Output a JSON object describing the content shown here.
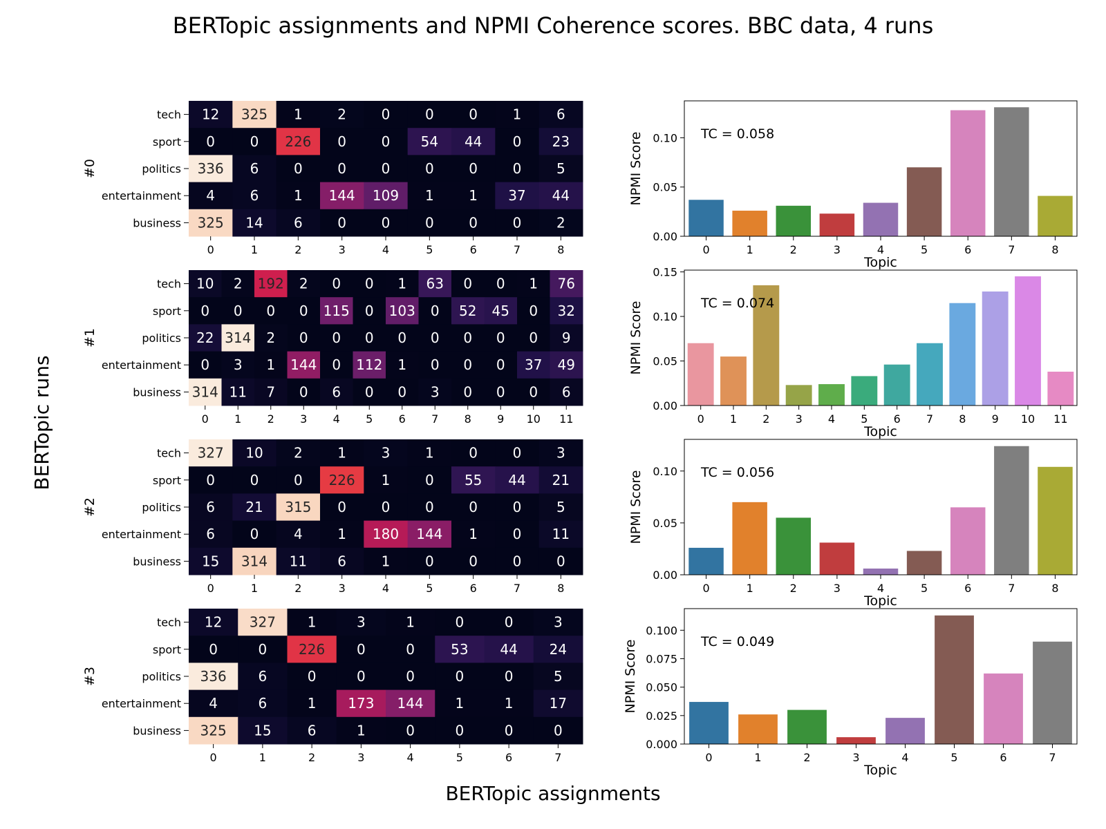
{
  "figure": {
    "title": "BERTopic assignments and NPMI Coherence scores. BBC data, 4 runs",
    "ylabel": "BERTopic runs",
    "xlabel": "BERTopic assignments"
  },
  "chart_data": [
    {
      "type": "heatmap",
      "run_label": "#0",
      "rows": [
        "tech",
        "sport",
        "politics",
        "entertainment",
        "business"
      ],
      "columns": [
        "0",
        "1",
        "2",
        "3",
        "4",
        "5",
        "6",
        "7",
        "8"
      ],
      "values": [
        [
          12,
          325,
          1,
          2,
          0,
          0,
          0,
          1,
          6
        ],
        [
          0,
          0,
          226,
          0,
          0,
          54,
          44,
          0,
          23
        ],
        [
          336,
          6,
          0,
          0,
          0,
          0,
          0,
          0,
          5
        ],
        [
          4,
          6,
          1,
          144,
          109,
          1,
          1,
          37,
          44
        ],
        [
          325,
          14,
          6,
          0,
          0,
          0,
          0,
          0,
          2
        ]
      ]
    },
    {
      "type": "bar",
      "annotation": "TC = 0.058",
      "xlabel": "Topic",
      "ylabel": "NPMI Score",
      "categories": [
        "0",
        "1",
        "2",
        "3",
        "4",
        "5",
        "6",
        "7",
        "8"
      ],
      "values": [
        0.037,
        0.026,
        0.031,
        0.023,
        0.034,
        0.07,
        0.128,
        0.131,
        0.041
      ],
      "ylim": [
        0,
        0.1375
      ],
      "yticks": [
        "0.00",
        "0.05",
        "0.10"
      ],
      "colors": [
        "#3274a1",
        "#e1812c",
        "#3a923a",
        "#c03d3e",
        "#9372b2",
        "#845b53",
        "#d684bd",
        "#7f7f7f",
        "#a9aa35"
      ]
    },
    {
      "type": "heatmap",
      "run_label": "#1",
      "rows": [
        "tech",
        "sport",
        "politics",
        "entertainment",
        "business"
      ],
      "columns": [
        "0",
        "1",
        "2",
        "3",
        "4",
        "5",
        "6",
        "7",
        "8",
        "9",
        "10",
        "11"
      ],
      "values": [
        [
          10,
          2,
          192,
          2,
          0,
          0,
          1,
          63,
          0,
          0,
          1,
          76
        ],
        [
          0,
          0,
          0,
          0,
          115,
          0,
          103,
          0,
          52,
          45,
          0,
          32
        ],
        [
          22,
          314,
          2,
          0,
          0,
          0,
          0,
          0,
          0,
          0,
          0,
          9
        ],
        [
          0,
          3,
          1,
          144,
          0,
          112,
          1,
          0,
          0,
          0,
          37,
          49
        ],
        [
          314,
          11,
          7,
          0,
          6,
          0,
          0,
          3,
          0,
          0,
          0,
          6
        ]
      ]
    },
    {
      "type": "bar",
      "annotation": "TC = 0.074",
      "xlabel": "Topic",
      "ylabel": "NPMI Score",
      "categories": [
        "0",
        "1",
        "2",
        "3",
        "4",
        "5",
        "6",
        "7",
        "8",
        "9",
        "10",
        "11"
      ],
      "values": [
        0.07,
        0.055,
        0.135,
        0.023,
        0.024,
        0.033,
        0.046,
        0.07,
        0.115,
        0.128,
        0.145,
        0.038
      ],
      "ylim": [
        0,
        0.152
      ],
      "yticks": [
        "0.00",
        "0.05",
        "0.10",
        "0.15"
      ],
      "colors": [
        "#e9969f",
        "#df9258",
        "#b59a4b",
        "#96a448",
        "#5fad4b",
        "#3aab7c",
        "#3fa89f",
        "#45a8bd",
        "#6aa9e0",
        "#aca0e6",
        "#da88e6",
        "#e68ac4"
      ]
    },
    {
      "type": "heatmap",
      "run_label": "#2",
      "rows": [
        "tech",
        "sport",
        "politics",
        "entertainment",
        "business"
      ],
      "columns": [
        "0",
        "1",
        "2",
        "3",
        "4",
        "5",
        "6",
        "7",
        "8"
      ],
      "values": [
        [
          327,
          10,
          2,
          1,
          3,
          1,
          0,
          0,
          3
        ],
        [
          0,
          0,
          0,
          226,
          1,
          0,
          55,
          44,
          21
        ],
        [
          6,
          21,
          315,
          0,
          0,
          0,
          0,
          0,
          5
        ],
        [
          6,
          0,
          4,
          1,
          180,
          144,
          1,
          0,
          11
        ],
        [
          15,
          314,
          11,
          6,
          1,
          0,
          0,
          0,
          0
        ]
      ]
    },
    {
      "type": "bar",
      "annotation": "TC = 0.056",
      "xlabel": "Topic",
      "ylabel": "NPMI Score",
      "categories": [
        "0",
        "1",
        "2",
        "3",
        "4",
        "5",
        "6",
        "7",
        "8"
      ],
      "values": [
        0.026,
        0.07,
        0.055,
        0.031,
        0.006,
        0.023,
        0.065,
        0.124,
        0.104
      ],
      "ylim": [
        0,
        0.1305
      ],
      "yticks": [
        "0.00",
        "0.05",
        "0.10"
      ],
      "colors": [
        "#3274a1",
        "#e1812c",
        "#3a923a",
        "#c03d3e",
        "#9372b2",
        "#845b53",
        "#d684bd",
        "#7f7f7f",
        "#a9aa35"
      ]
    },
    {
      "type": "heatmap",
      "run_label": "#3",
      "rows": [
        "tech",
        "sport",
        "politics",
        "entertainment",
        "business"
      ],
      "columns": [
        "0",
        "1",
        "2",
        "3",
        "4",
        "5",
        "6",
        "7"
      ],
      "values": [
        [
          12,
          327,
          1,
          3,
          1,
          0,
          0,
          3
        ],
        [
          0,
          0,
          226,
          0,
          0,
          53,
          44,
          24
        ],
        [
          336,
          6,
          0,
          0,
          0,
          0,
          0,
          5
        ],
        [
          4,
          6,
          1,
          173,
          144,
          1,
          1,
          17
        ],
        [
          325,
          15,
          6,
          1,
          0,
          0,
          0,
          0
        ]
      ]
    },
    {
      "type": "bar",
      "annotation": "TC = 0.049",
      "xlabel": "Topic",
      "ylabel": "NPMI Score",
      "categories": [
        "0",
        "1",
        "2",
        "3",
        "4",
        "5",
        "6",
        "7"
      ],
      "values": [
        0.037,
        0.026,
        0.03,
        0.006,
        0.023,
        0.113,
        0.062,
        0.09
      ],
      "ylim": [
        0,
        0.119
      ],
      "yticks": [
        "0.000",
        "0.025",
        "0.050",
        "0.075",
        "0.100"
      ],
      "colors": [
        "#3274a1",
        "#e1812c",
        "#3a923a",
        "#c03d3e",
        "#9372b2",
        "#845b53",
        "#d684bd",
        "#7f7f7f"
      ]
    }
  ]
}
